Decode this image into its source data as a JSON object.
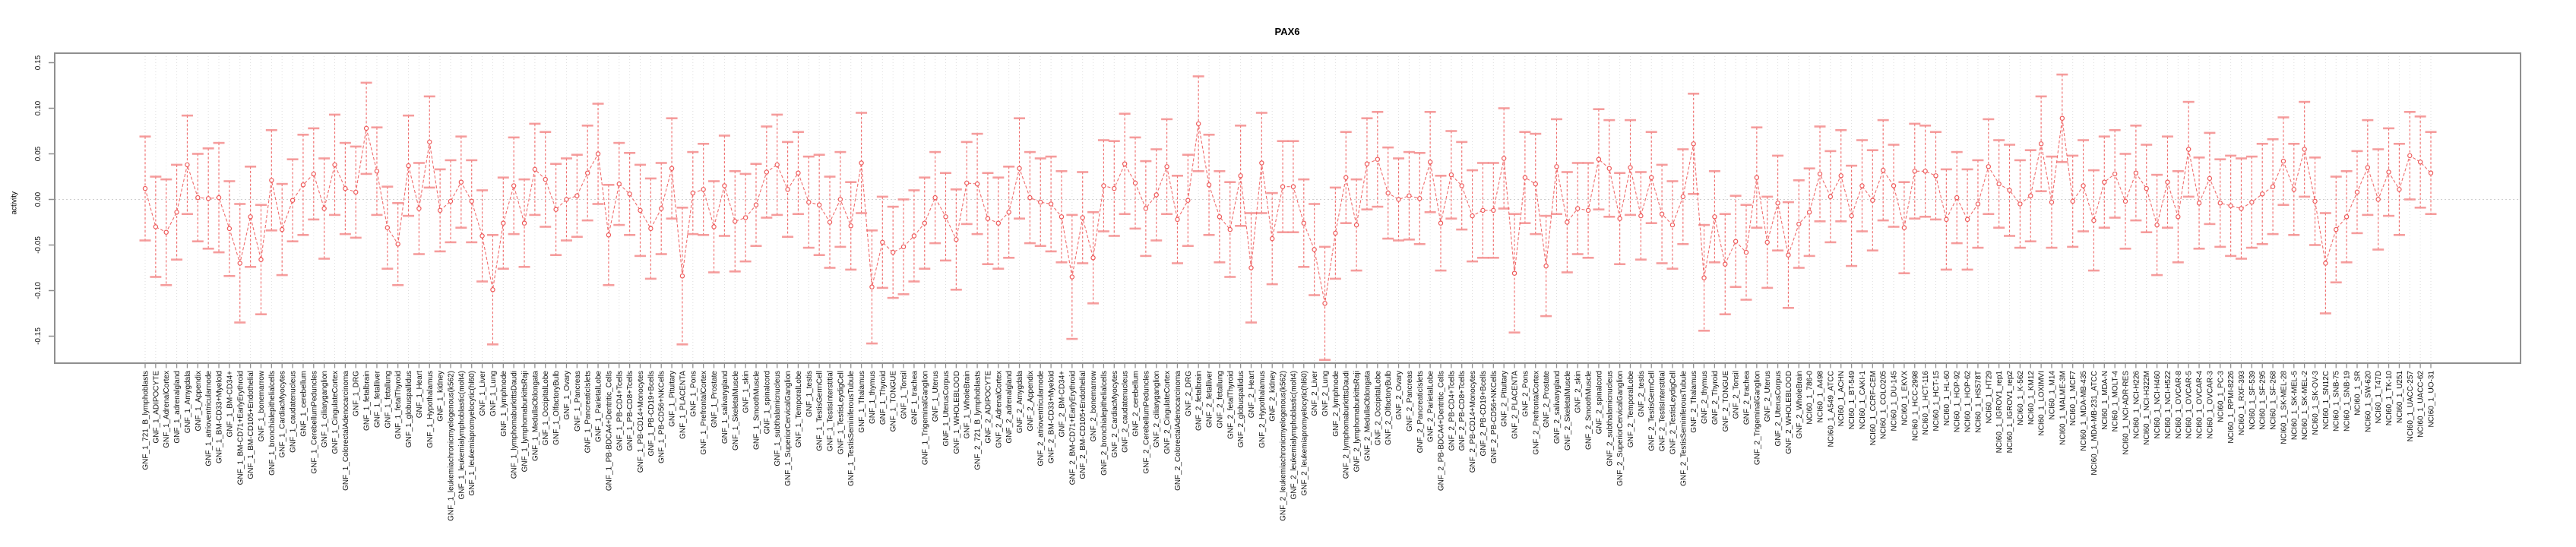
{
  "title": "PAX6",
  "ylabel": "activity",
  "colors": {
    "frame": "#8f8f8f",
    "grid": "#dedede",
    "zero_line": "#cfcfcf",
    "stem": "#f06060",
    "cap": "#f48c8c",
    "connector": "#ef6565",
    "marker_stroke": "#ee5a5a",
    "marker_fill": "#ffffff",
    "text": "#111111"
  },
  "chart_data": {
    "type": "line",
    "subtype": "errorbar-series",
    "title": "PAX6",
    "xlabel": "",
    "ylabel": "activity",
    "ylim": [
      -0.18,
      0.16
    ],
    "grid": "vertical-dotted-per-category, dotted zero line",
    "legend": "none",
    "yticks": [
      {
        "value": 0.15,
        "label": "0.15"
      },
      {
        "value": 0.1,
        "label": "0.10"
      },
      {
        "value": 0.05,
        "label": "0.05"
      },
      {
        "value": 0.0,
        "label": "0.00"
      },
      {
        "value": -0.05,
        "label": "-0.05"
      },
      {
        "value": -0.1,
        "label": "-0.10"
      },
      {
        "value": -0.15,
        "label": "-0.15"
      }
    ],
    "points_format": [
      "label",
      "value",
      "err"
    ],
    "points": [
      [
        "GNF_1_721_B_lymphoblasts",
        0.012,
        0.057
      ],
      [
        "GNF_1_ADIPOCYTE",
        -0.03,
        0.055
      ],
      [
        "GNF_1_AdrenalCortex",
        -0.036,
        0.058
      ],
      [
        "GNF_1_adrenalgland",
        -0.014,
        0.052
      ],
      [
        "GNF_1_Amygdala",
        0.038,
        0.054
      ],
      [
        "GNF_1_Appendix",
        0.002,
        0.048
      ],
      [
        "GNF_1_atrioventricularnode",
        0.001,
        0.055
      ],
      [
        "GNF_1_BM-CD33+Myeloid",
        0.002,
        0.06
      ],
      [
        "GNF_1_BM-CD34+",
        -0.032,
        0.052
      ],
      [
        "GNF_1_BM-CD71+EarlyErythroid",
        -0.07,
        0.065
      ],
      [
        "GNF_1_BM-CD105+Endothelial",
        -0.019,
        0.055
      ],
      [
        "GNF_1_bonemarrow",
        -0.066,
        0.06
      ],
      [
        "GNF_1_bronchialepithelialcells",
        0.021,
        0.055
      ],
      [
        "GNF_1_CardiacMyocytes",
        -0.033,
        0.05
      ],
      [
        "GNF_1_caudatenucleus",
        -0.001,
        0.045
      ],
      [
        "GNF_1_cerebellum",
        0.016,
        0.055
      ],
      [
        "GNF_1_CerebellumPeduncles",
        0.028,
        0.05
      ],
      [
        "GNF_1_ciliaryganglion",
        -0.01,
        0.055
      ],
      [
        "GNF_1_CingulateCortex",
        0.038,
        0.055
      ],
      [
        "GNF_1_ColorectalAdenocarcinoma",
        0.012,
        0.05
      ],
      [
        "GNF_1_DRG",
        0.008,
        0.05
      ],
      [
        "GNF_1_fetalbrain",
        0.078,
        0.05
      ],
      [
        "GNF_1_fetalliver",
        0.031,
        0.048
      ],
      [
        "GNF_1_fetallung",
        -0.031,
        0.045
      ],
      [
        "GNF_1_fetalThyroid",
        -0.049,
        0.045
      ],
      [
        "GNF_1_globuspallidus",
        0.037,
        0.055
      ],
      [
        "GNF_1_Heart",
        -0.01,
        0.05
      ],
      [
        "GNF_1_Hypothalamus",
        0.063,
        0.05
      ],
      [
        "GNF_1_kidney",
        -0.012,
        0.045
      ],
      [
        "GNF_1_leukemiachronicmyelogenous(k562)",
        -0.002,
        0.045
      ],
      [
        "GNF_1_leukemialymphoblastic(molt4)",
        0.019,
        0.05
      ],
      [
        "GNF_1_leukemiapromyelocytic(hl60)",
        -0.002,
        0.045
      ],
      [
        "GNF_1_Liver",
        -0.04,
        0.05
      ],
      [
        "GNF_1_Lung",
        -0.099,
        0.06
      ],
      [
        "GNF_1_lymphnode",
        -0.026,
        0.05
      ],
      [
        "GNF_1_lymphomaburkittsDaudi",
        0.015,
        0.053
      ],
      [
        "GNF_1_lymphomaburkittsRaji",
        -0.026,
        0.048
      ],
      [
        "GNF_1_MedullaOblongata",
        0.033,
        0.05
      ],
      [
        "GNF_1_OccipitalLobe",
        0.022,
        0.052
      ],
      [
        "GNF_1_OlfactoryBulb",
        -0.011,
        0.05
      ],
      [
        "GNF_1_Ovary",
        0.0,
        0.045
      ],
      [
        "GNF_1_Pancreas",
        0.004,
        0.045
      ],
      [
        "GNF_1_PancreaticIslets",
        0.029,
        0.052
      ],
      [
        "GNF_1_ParietalLobe",
        0.05,
        0.055
      ],
      [
        "GNF_1_PB-BDCA4+Dentritic_Cells",
        -0.039,
        0.055
      ],
      [
        "GNF_1_PB-CD4+Tcells",
        0.017,
        0.045
      ],
      [
        "GNF_1_PB-CD8+Tcells",
        0.006,
        0.045
      ],
      [
        "GNF_1_PB-CD14+Monocytes",
        -0.012,
        0.05
      ],
      [
        "GNF_1_PB-CD19+Bcells",
        -0.032,
        0.055
      ],
      [
        "GNF_1_PB-CD56+NKCells",
        -0.01,
        0.05
      ],
      [
        "GNF_1_Pituitary",
        0.034,
        0.055
      ],
      [
        "GNF_1_PLACENTA",
        -0.084,
        0.075
      ],
      [
        "GNF_1_Pons",
        0.007,
        0.045
      ],
      [
        "GNF_1_PrefrontalCortex",
        0.011,
        0.05
      ],
      [
        "GNF_1_Prostate",
        -0.03,
        0.05
      ],
      [
        "GNF_1_salivarygland",
        0.015,
        0.055
      ],
      [
        "GNF_1_SkeletalMuscle",
        -0.024,
        0.055
      ],
      [
        "GNF_1_skin",
        -0.02,
        0.048
      ],
      [
        "GNF_1_SmoothMuscle",
        -0.006,
        0.045
      ],
      [
        "GNF_1_spinalcord",
        0.03,
        0.05
      ],
      [
        "GNF_1_subthalamicnucleus",
        0.038,
        0.055
      ],
      [
        "GNF_1_SuperiorCervicalGanglion",
        0.011,
        0.052
      ],
      [
        "GNF_1_TemporalLobe",
        0.029,
        0.045
      ],
      [
        "GNF_1_testis",
        -0.003,
        0.05
      ],
      [
        "GNF_1_TestisGermCell",
        -0.006,
        0.055
      ],
      [
        "GNF_1_TestisInterstitial",
        -0.025,
        0.05
      ],
      [
        "GNF_1_TestisLeydigCell",
        0.0,
        0.052
      ],
      [
        "GNF_1_TestisSeminiferousTubule",
        -0.029,
        0.048
      ],
      [
        "GNF_1_Thalamus",
        0.04,
        0.055
      ],
      [
        "GNF_1_thymus",
        -0.096,
        0.062
      ],
      [
        "GNF_1_Thyroid",
        -0.047,
        0.05
      ],
      [
        "GNF_1_TONGUE",
        -0.058,
        0.05
      ],
      [
        "GNF_1_Tonsil",
        -0.052,
        0.052
      ],
      [
        "GNF_1_trachea",
        -0.04,
        0.05
      ],
      [
        "GNF_1_TrigeminalGanglion",
        -0.026,
        0.05
      ],
      [
        "GNF_1_Uterus",
        0.002,
        0.05
      ],
      [
        "GNF_1_UterusCorpus",
        -0.019,
        0.048
      ],
      [
        "GNF_1_WHOLEBLOOD",
        -0.044,
        0.055
      ],
      [
        "GNF_1_WholeBrain",
        0.018,
        0.045
      ],
      [
        "GNF_2_721_B_lymphoblasts",
        0.017,
        0.055
      ],
      [
        "GNF_2_ADIPOCYTE",
        -0.021,
        0.05
      ],
      [
        "GNF_2_AdrenalCortex",
        -0.026,
        0.05
      ],
      [
        "GNF_2_adrenalgland",
        -0.014,
        0.05
      ],
      [
        "GNF_2_Amygdala",
        0.034,
        0.055
      ],
      [
        "GNF_2_Appendix",
        0.002,
        0.05
      ],
      [
        "GNF_2_atrioventricularnode",
        -0.003,
        0.048
      ],
      [
        "GNF_2_BM-CD33+Myeloid",
        -0.005,
        0.052
      ],
      [
        "GNF_2_BM-CD34+",
        -0.019,
        0.05
      ],
      [
        "GNF_2_BM-CD71+EarlyErythroid",
        -0.085,
        0.068
      ],
      [
        "GNF_2_BM-CD105+Endothelial",
        -0.02,
        0.05
      ],
      [
        "GNF_2_bonemarrow",
        -0.064,
        0.05
      ],
      [
        "GNF_2_bronchialepithelialcells",
        0.015,
        0.05
      ],
      [
        "GNF_2_CardiacMyocytes",
        0.012,
        0.052
      ],
      [
        "GNF_2_caudatenucleus",
        0.039,
        0.055
      ],
      [
        "GNF_2_cerebellum",
        0.018,
        0.05
      ],
      [
        "GNF_2_CerebellumPeduncles",
        -0.01,
        0.052
      ],
      [
        "GNF_2_ciliaryganglion",
        0.005,
        0.05
      ],
      [
        "GNF_2_CingulateCortex",
        0.036,
        0.052
      ],
      [
        "GNF_2_ColorectalAdenocarcinoma",
        -0.022,
        0.048
      ],
      [
        "GNF_2_DRG",
        -0.001,
        0.05
      ],
      [
        "GNF_2_fetalbrain",
        0.083,
        0.052
      ],
      [
        "GNF_2_fetalliver",
        0.016,
        0.055
      ],
      [
        "GNF_2_fetallung",
        -0.019,
        0.05
      ],
      [
        "GNF_2_fetalThyroid",
        -0.033,
        0.052
      ],
      [
        "GNF_2_globuspallidus",
        0.026,
        0.055
      ],
      [
        "GNF_2_Heart",
        -0.075,
        0.06
      ],
      [
        "GNF_2_Hypothalamus",
        0.04,
        0.055
      ],
      [
        "GNF_2_kidney",
        -0.043,
        0.05
      ],
      [
        "GNF_2_leukemiachronicmyelogenous(k562)",
        0.014,
        0.05
      ],
      [
        "GNF_2_leukemialymphoblastic(molt4)",
        0.014,
        0.05
      ],
      [
        "GNF_2_leukemiapromyelocytic(hl60)",
        -0.026,
        0.048
      ],
      [
        "GNF_2_Liver",
        -0.055,
        0.05
      ],
      [
        "GNF_2_Lung",
        -0.114,
        0.062
      ],
      [
        "GNF_2_lymphnode",
        -0.037,
        0.05
      ],
      [
        "GNF_2_lymphomaburkittsDaudi",
        0.024,
        0.05
      ],
      [
        "GNF_2_lymphomaburkittsRaji",
        -0.028,
        0.05
      ],
      [
        "GNF_2_MedullaOblongata",
        0.039,
        0.05
      ],
      [
        "GNF_2_OccipitalLobe",
        0.044,
        0.052
      ],
      [
        "GNF_2_OlfactoryBulb",
        0.007,
        0.05
      ],
      [
        "GNF_2_Ovary",
        0.0,
        0.045
      ],
      [
        "GNF_2_Pancreas",
        0.004,
        0.048
      ],
      [
        "GNF_2_PancreaticIslets",
        0.001,
        0.05
      ],
      [
        "GNF_2_ParietalLobe",
        0.041,
        0.055
      ],
      [
        "GNF_2_PB-BDCA4+Dentritic_Cells",
        -0.026,
        0.052
      ],
      [
        "GNF_2_PB-CD4+Tcells",
        0.027,
        0.048
      ],
      [
        "GNF_2_PB-CD8+Tcells",
        0.015,
        0.048
      ],
      [
        "GNF_2_PB-CD14+Monocytes",
        -0.018,
        0.05
      ],
      [
        "GNF_2_PB-CD19+Bcells",
        -0.012,
        0.052
      ],
      [
        "GNF_2_PB-CD56+NKCells",
        -0.012,
        0.052
      ],
      [
        "GNF_2_Pituitary",
        0.045,
        0.055
      ],
      [
        "GNF_2_PLACENTA",
        -0.081,
        0.065
      ],
      [
        "GNF_2_Pons",
        0.024,
        0.05
      ],
      [
        "GNF_2_PrefrontalCortex",
        0.017,
        0.055
      ],
      [
        "GNF_2_Prostate",
        -0.073,
        0.055
      ],
      [
        "GNF_2_salivarygland",
        0.036,
        0.052
      ],
      [
        "GNF_2_SkeletalMuscle",
        -0.025,
        0.055
      ],
      [
        "GNF_2_skin",
        -0.01,
        0.05
      ],
      [
        "GNF_2_SmoothMuscle",
        -0.012,
        0.052
      ],
      [
        "GNF_2_spinalcord",
        0.044,
        0.055
      ],
      [
        "GNF_2_subthalamicnucleus",
        0.034,
        0.053
      ],
      [
        "GNF_2_SuperiorCervicalGanglion",
        -0.021,
        0.05
      ],
      [
        "GNF_2_TemporalLobe",
        0.035,
        0.052
      ],
      [
        "GNF_2_testis",
        -0.018,
        0.048
      ],
      [
        "GNF_2_TestisGermCell",
        0.024,
        0.05
      ],
      [
        "GNF_2_TestisInterstitial",
        -0.016,
        0.054
      ],
      [
        "GNF_2_TestisLeydigCell",
        -0.028,
        0.048
      ],
      [
        "GNF_2_TestisSeminiferousTubule",
        0.003,
        0.052
      ],
      [
        "GNF_2_Thalamus",
        0.061,
        0.055
      ],
      [
        "GNF_2_thymus",
        -0.086,
        0.058
      ],
      [
        "GNF_2_Thyroid",
        -0.019,
        0.05
      ],
      [
        "GNF_2_TONGUE",
        -0.071,
        0.055
      ],
      [
        "GNF_2_Tonsil",
        -0.046,
        0.05
      ],
      [
        "GNF_2_trachea",
        -0.058,
        0.052
      ],
      [
        "GNF_2_TrigeminalGanglion",
        0.024,
        0.055
      ],
      [
        "GNF_2_Uterus",
        -0.047,
        0.05
      ],
      [
        "GNF_2_UterusCorpus",
        -0.004,
        0.052
      ],
      [
        "GNF_2_WHOLEBLOOD",
        -0.061,
        0.058
      ],
      [
        "GNF_2_WholeBrain",
        -0.027,
        0.048
      ],
      [
        "NCI60_1_786-0",
        -0.014,
        0.048
      ],
      [
        "NCI60_1_A498",
        0.028,
        0.052
      ],
      [
        "NCI60_1_A549_ATCC",
        0.003,
        0.05
      ],
      [
        "NCI60_1_ACHN",
        0.026,
        0.05
      ],
      [
        "NCI60_1_BT-549",
        -0.018,
        0.055
      ],
      [
        "NCI60_1_CAKI-1",
        0.015,
        0.05
      ],
      [
        "NCI60_1_CCRF-CEM",
        -0.001,
        0.055
      ],
      [
        "NCI60_1_COLO205",
        0.032,
        0.055
      ],
      [
        "NCI60_1_DU-145",
        0.015,
        0.045
      ],
      [
        "NCI60_1_EKVX",
        -0.031,
        0.05
      ],
      [
        "NCI60_1_HCC-2998",
        0.031,
        0.052
      ],
      [
        "NCI60_1_HCT-116",
        0.031,
        0.05
      ],
      [
        "NCI60_1_HCT-15",
        0.026,
        0.048
      ],
      [
        "NCI60_1_HL-60",
        -0.022,
        0.055
      ],
      [
        "NCI60_1_HOP-92",
        0.002,
        0.05
      ],
      [
        "NCI60_1_HOP-62",
        -0.022,
        0.055
      ],
      [
        "NCI60_1_HS578T",
        -0.005,
        0.048
      ],
      [
        "NCI60_1_HT29",
        0.036,
        0.052
      ],
      [
        "NCI60_1_IGROV1_rep1",
        0.017,
        0.048
      ],
      [
        "NCI60_1_IGROV1_rep2",
        0.01,
        0.05
      ],
      [
        "NCI60_1_K-562",
        -0.005,
        0.048
      ],
      [
        "NCI60_1_KM12",
        0.004,
        0.05
      ],
      [
        "NCI60_1_LOXIMVI",
        0.061,
        0.052
      ],
      [
        "NCI60_1_M14",
        -0.003,
        0.05
      ],
      [
        "NCI60_1_MALME-3M",
        0.089,
        0.048
      ],
      [
        "NCI60_1_MCF7",
        -0.002,
        0.05
      ],
      [
        "NCI60_1_MDA-MB-435",
        0.015,
        0.05
      ],
      [
        "NCI60_1_MDA-MB-231_ATCC",
        -0.023,
        0.055
      ],
      [
        "NCI60_1_MDA-N",
        0.019,
        0.05
      ],
      [
        "NCI60_1_MOLT-4",
        0.028,
        0.048
      ],
      [
        "NCI60_1_NCI-ADR-RES",
        -0.002,
        0.052
      ],
      [
        "NCI60_1_NCI-H226",
        0.029,
        0.052
      ],
      [
        "NCI60_1_NCI-H322M",
        0.012,
        0.048
      ],
      [
        "NCI60_1_NCI-H460",
        -0.028,
        0.055
      ],
      [
        "NCI60_1_NCI-H522",
        0.019,
        0.05
      ],
      [
        "NCI60_1_OVCAR-8",
        -0.019,
        0.05
      ],
      [
        "NCI60_1_OVCAR-5",
        0.055,
        0.052
      ],
      [
        "NCI60_1_OVCAR-4",
        -0.004,
        0.05
      ],
      [
        "NCI60_1_OVCAR-3",
        0.023,
        0.05
      ],
      [
        "NCI60_1_PC-3",
        -0.004,
        0.048
      ],
      [
        "NCI60_1_RPMI-8226",
        -0.007,
        0.055
      ],
      [
        "NCI60_1_RXF-393",
        -0.01,
        0.055
      ],
      [
        "NCI60_1_SF-539",
        -0.003,
        0.05
      ],
      [
        "NCI60_1_SF-295",
        0.006,
        0.055
      ],
      [
        "NCI60_1_SF-268",
        0.014,
        0.052
      ],
      [
        "NCI60_1_SK-MEL-28",
        0.042,
        0.048
      ],
      [
        "NCI60_1_SK-MEL-5",
        0.011,
        0.05
      ],
      [
        "NCI60_1_SK-MEL-2",
        0.055,
        0.052
      ],
      [
        "NCI60_1_SK-OV-3",
        -0.002,
        0.048
      ],
      [
        "NCI60_1_SN12C",
        -0.07,
        0.055
      ],
      [
        "NCI60_1_SNB-75",
        -0.033,
        0.058
      ],
      [
        "NCI60_1_SNB-19",
        -0.019,
        0.05
      ],
      [
        "NCI60_1_SR",
        0.008,
        0.045
      ],
      [
        "NCI60_1_SW-620",
        0.035,
        0.052
      ],
      [
        "NCI60_1_T47D",
        0.0,
        0.055
      ],
      [
        "NCI60_1_TK-10",
        0.03,
        0.048
      ],
      [
        "NCI60_1_U251",
        0.011,
        0.05
      ],
      [
        "NCI60_1_UACC-257",
        0.048,
        0.048
      ],
      [
        "NCI60_1_UACC-62",
        0.041,
        0.05
      ],
      [
        "NCI60_1_UO-31",
        0.029,
        0.045
      ]
    ]
  }
}
